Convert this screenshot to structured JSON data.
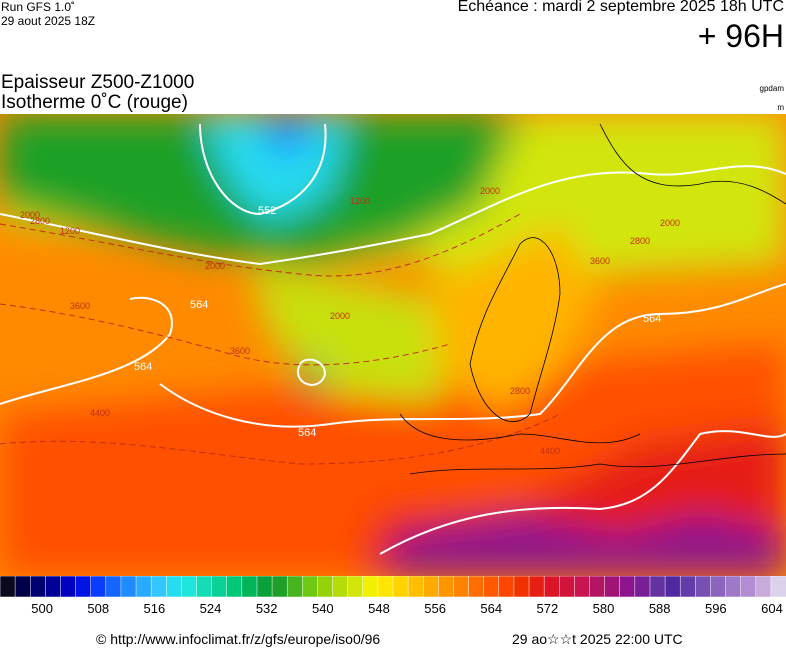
{
  "header": {
    "model": "Run GFS 1.0˚",
    "run": "29 aout 2025 18Z",
    "valid": "Echéance : mardi 2 septembre 2025 18h UTC",
    "lead": "+ 96H",
    "title1": "Epaisseur Z500-Z1000",
    "title2": "Isotherme 0˚C (rouge)",
    "unit1": "gpdam",
    "unit2": "m"
  },
  "map": {
    "white_labels": [
      "564",
      "564",
      "564",
      "564",
      "552"
    ],
    "red_labels": [
      "2800",
      "2000",
      "1200",
      "3600",
      "3600",
      "2000",
      "2000",
      "2800",
      "4400",
      "4400",
      "2000",
      "2800",
      "3600",
      "2000",
      "1200"
    ]
  },
  "colorbar": {
    "lim": [
      494,
      606
    ],
    "ticks": [
      500,
      508,
      516,
      524,
      532,
      540,
      548,
      556,
      564,
      572,
      580,
      588,
      596,
      604
    ],
    "colors": [
      "#0a0a1e",
      "#00004a",
      "#000070",
      "#000096",
      "#0000c0",
      "#0014e6",
      "#0a3cff",
      "#1464ff",
      "#1e8cff",
      "#28aaff",
      "#32c8ff",
      "#28dcf0",
      "#1ee6dc",
      "#14dcb4",
      "#0ad296",
      "#00c878",
      "#00b45a",
      "#0aa03c",
      "#1ea028",
      "#46b41e",
      "#6ec814",
      "#96d20a",
      "#b4dc0a",
      "#d2e60a",
      "#f0f000",
      "#ffe600",
      "#ffd200",
      "#ffbe00",
      "#ffaa00",
      "#ff9600",
      "#ff8200",
      "#ff6e00",
      "#ff5a00",
      "#ff4600",
      "#f03200",
      "#e61e14",
      "#dc1428",
      "#d2143c",
      "#c81450",
      "#b41464",
      "#a01478",
      "#8c148c",
      "#781e96",
      "#6432a0",
      "#5028a0",
      "#643caa",
      "#7850b4",
      "#8c64be",
      "#a078c8",
      "#b48cd2",
      "#c8aadc",
      "#dcd2eb"
    ]
  },
  "footer": {
    "source": "© http://www.infoclimat.fr/z/gfs/europe/iso0/96",
    "time": "29 ao☆☆t 2025 22:00 UTC"
  }
}
